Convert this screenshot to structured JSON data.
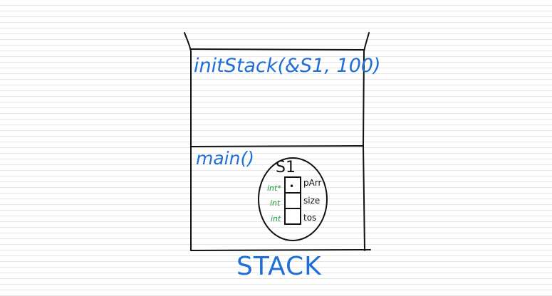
{
  "diagram": {
    "frames": {
      "top": {
        "label": "initStack(&S1, 100)"
      },
      "bottom": {
        "label": "main()"
      }
    },
    "struct": {
      "name": "S1",
      "fields": [
        {
          "type": "int*",
          "name": "pArr",
          "content": "•"
        },
        {
          "type": "int",
          "name": "size",
          "content": ""
        },
        {
          "type": "int",
          "name": "tos",
          "content": ""
        }
      ]
    },
    "region_label": "STACK",
    "colors": {
      "ink": "#111111",
      "label_blue": "#1f6fd6",
      "type_green": "#1a9c3a",
      "paper_lines": "#e6e6e6"
    }
  }
}
